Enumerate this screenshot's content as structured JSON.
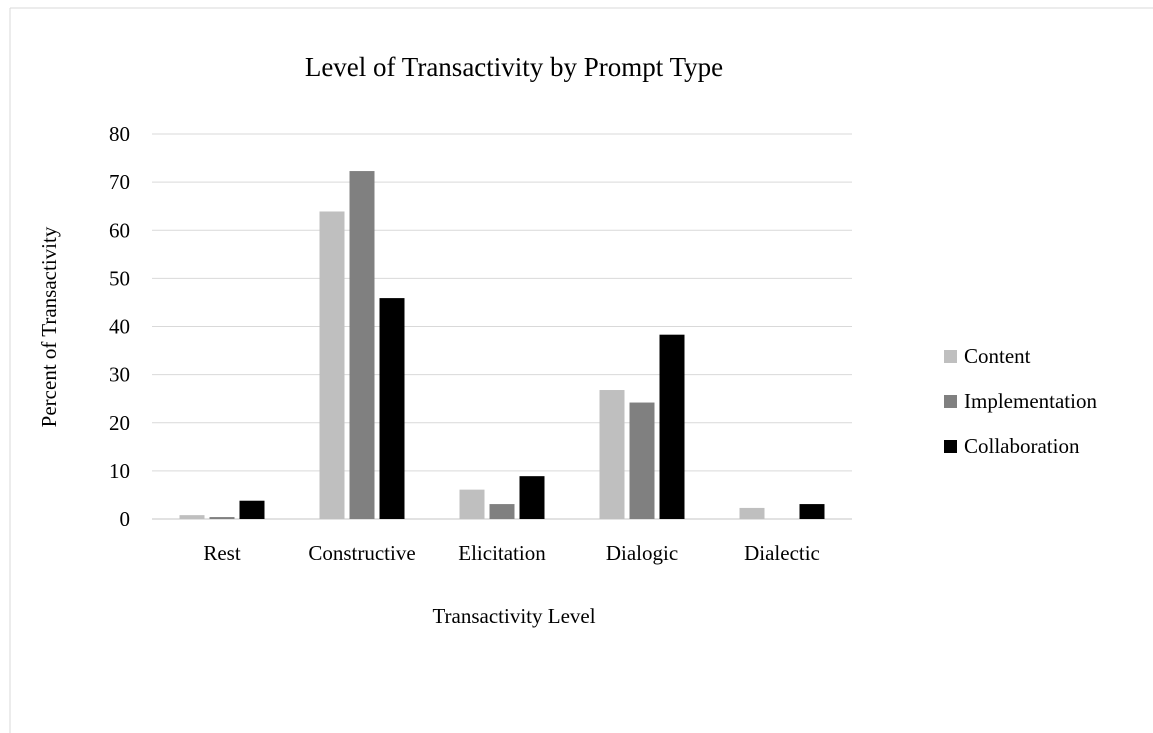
{
  "chart_data": {
    "type": "bar",
    "title": "Level of Transactivity by Prompt Type",
    "xlabel": "Transactivity Level",
    "ylabel": "Percent of Transactivity",
    "categories": [
      "Rest",
      "Constructive",
      "Elicitation",
      "Dialogic",
      "Dialectic"
    ],
    "series": [
      {
        "name": "Content",
        "color": "#bfbfbf",
        "values": [
          0.8,
          63.9,
          6.1,
          26.8,
          2.3
        ]
      },
      {
        "name": "Implementation",
        "color": "#808080",
        "values": [
          0.4,
          72.3,
          3.1,
          24.2,
          0
        ]
      },
      {
        "name": "Collaboration",
        "color": "#000000",
        "values": [
          3.8,
          45.9,
          8.9,
          38.3,
          3.1
        ]
      }
    ],
    "ylim": [
      0,
      80
    ],
    "yticks": [
      "0",
      "10",
      "20",
      "30",
      "40",
      "50",
      "60",
      "70",
      "80"
    ],
    "grid": true,
    "gridline_color": "#d9d9d9",
    "border_color": "#d9d9d9",
    "legend_position": "right"
  }
}
